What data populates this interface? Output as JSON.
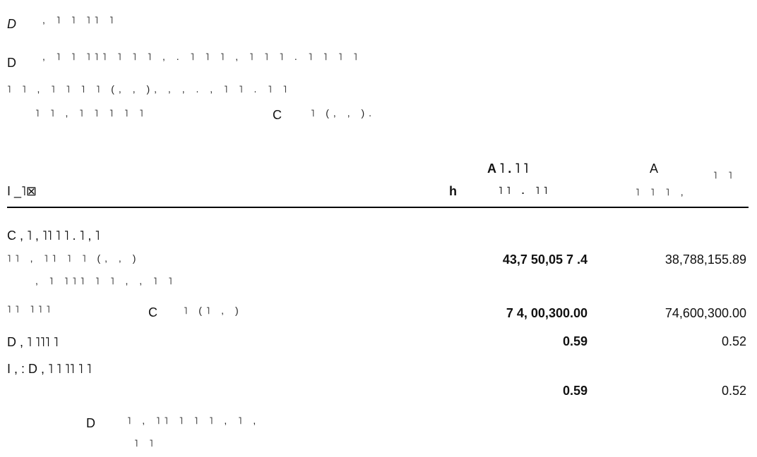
{
  "intro": {
    "line1": {
      "lead": "D",
      "tail": ", ˥ ˥ ˥˥ ˥"
    },
    "line2": {
      "lead": "D",
      "tail": ", ˥ ˥ ˥˥˥ ˥ ˥ ˥ , . ˥ ˥ ˥ , ˥ ˥ ˥ . ˥ ˥ ˥ ˥"
    },
    "line3": "˥ ˥ , ˥ ˥ ˥ ˥ (, , ), , , . , ˥ ˥ . ˥ ˥",
    "line4": {
      "lead": "˥ ˥ , ˥ ˥ ˥ ˥ ˥",
      "mark": "C",
      "tail": "˥ (, , )."
    }
  },
  "table": {
    "headers": {
      "col1": "I _˥⊠",
      "col2_top": "A ˥ . ˥ ˥",
      "col2_mid": "h",
      "col2_bottom": "˥˥ . ˥˥",
      "col3_top": "A",
      "col3_side": "˥ ˥",
      "col3_bottom": "˥ ˥ ˥ ,"
    },
    "rows": [
      {
        "label_lines": [
          "C , ˥ , ˥˥ ˥ ˥ . ˥ , ˥",
          "˥˥ , ˥˥ ˥ ˥ (, , )",
          ", ˥ ˥˥˥ ˥ ˥ , , ˥ ˥"
        ],
        "col2": "43,7 50,05 7 .4",
        "col3": "38,788,155.89"
      },
      {
        "label_lines": [
          "˥˥ ˥˥˥",
          "C",
          "˥ (˥ , )"
        ],
        "col2": "7 4, 00,300.00",
        "col3": "74,600,300.00"
      },
      {
        "label_lines": [
          "D , ˥ ˥˥˥ ˥"
        ],
        "col2": "0.59",
        "col3": "0.52"
      },
      {
        "label_lines": [
          "I , : D , ˥ ˥ ˥˥ ˥ ˥"
        ],
        "col2": "",
        "col3": ""
      },
      {
        "label_lines": [
          ""
        ],
        "col2": "0.59",
        "col3": "0.52"
      },
      {
        "label_lines": [
          "D",
          "˥ , ˥˥ ˥ ˥ ˥ , ˥ ,",
          "˥ ˥"
        ],
        "col2": "",
        "col3": ""
      }
    ]
  }
}
